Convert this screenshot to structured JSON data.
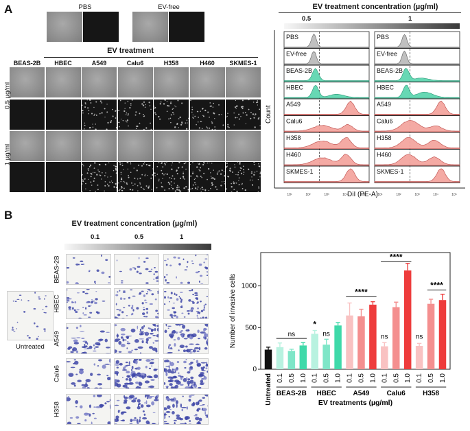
{
  "panel_a": {
    "letter": "A",
    "top_labels": [
      "PBS",
      "EV-free"
    ],
    "ev_treatment_title": "EV treatment",
    "cell_lines": [
      "BEAS-2B",
      "HBEC",
      "A549",
      "Calu6",
      "H358",
      "H460",
      "SKMES-1"
    ],
    "dose_rows": [
      "0.5 µg/ml",
      "1 µg/ml"
    ]
  },
  "flow": {
    "title": "EV treatment concentration (µg/ml)",
    "conc_labels": [
      "0.5",
      "1"
    ],
    "samples": [
      "PBS",
      "EV-free",
      "BEAS-2B",
      "HBEC",
      "A549",
      "Calu6",
      "H358",
      "H460",
      "SKMES-1"
    ],
    "ylabel": "Count",
    "xlabel": "DiI (PE-A)",
    "tick_labels": [
      "10¹",
      "10²",
      "10³",
      "10⁴",
      "10⁵"
    ],
    "colors": {
      "control": "#bdbdbd",
      "normal": "#5fd6b0",
      "cancer": "#f4a6a0"
    }
  },
  "panel_b": {
    "letter": "B",
    "title": "EV treatment concentration (µg/ml)",
    "conc_labels": [
      "0.1",
      "0.5",
      "1"
    ],
    "cell_lines": [
      "BEAS-2B",
      "HBEC",
      "A549",
      "Calu6",
      "H358"
    ],
    "untreated_label": "Untreated"
  },
  "chart_data": {
    "type": "bar",
    "title": "",
    "ylabel": "Number of invasive cells",
    "xlabel": "EV treatments (µg/ml)",
    "ylim": [
      0,
      1400
    ],
    "yticks": [
      0,
      500,
      1000
    ],
    "categories": [
      "Untreated",
      "0.1",
      "0.5",
      "1.0",
      "0.1",
      "0.5",
      "1.0",
      "0.1",
      "0.5",
      "1.0",
      "0.1",
      "0.5",
      "1.0",
      "0.1",
      "0.5",
      "1.0"
    ],
    "groups": [
      {
        "name": "BEAS-2B",
        "from": 1,
        "to": 3
      },
      {
        "name": "HBEC",
        "from": 4,
        "to": 6
      },
      {
        "name": "A549",
        "from": 7,
        "to": 9
      },
      {
        "name": "Calu6",
        "from": 10,
        "to": 12
      },
      {
        "name": "H358",
        "from": 13,
        "to": 15
      }
    ],
    "values": [
      235,
      265,
      220,
      285,
      425,
      295,
      525,
      645,
      635,
      775,
      275,
      745,
      1185,
      280,
      785,
      830
    ],
    "errors": [
      30,
      50,
      20,
      35,
      40,
      65,
      35,
      150,
      85,
      35,
      45,
      60,
      85,
      30,
      55,
      70
    ],
    "colors": [
      "#111111",
      "#b8f2e0",
      "#7fe6c8",
      "#3fd9a9",
      "#b8f2e0",
      "#7fe6c8",
      "#3fd9a9",
      "#f9c2c2",
      "#f48f8f",
      "#ee3c3c",
      "#f9c2c2",
      "#f48f8f",
      "#ee3c3c",
      "#f9c2c2",
      "#f48f8f",
      "#ee3c3c"
    ],
    "annotations": [
      {
        "text": "ns",
        "type": "bracket",
        "from": 1,
        "to": 3,
        "y": 370
      },
      {
        "text": "*",
        "type": "single",
        "at": 4,
        "y": 480
      },
      {
        "text": "ns",
        "type": "single",
        "at": 5,
        "y": 375
      },
      {
        "text": "****",
        "type": "bracket",
        "from": 7,
        "to": 9,
        "y": 870
      },
      {
        "text": "ns",
        "type": "single",
        "at": 10,
        "y": 340
      },
      {
        "text": "****",
        "type": "bracket",
        "from": 10,
        "to": 12,
        "y": 1290
      },
      {
        "text": "ns",
        "type": "single",
        "at": 13,
        "y": 340
      },
      {
        "text": "****",
        "type": "bracket",
        "from": 14,
        "to": 15,
        "y": 950
      }
    ]
  }
}
